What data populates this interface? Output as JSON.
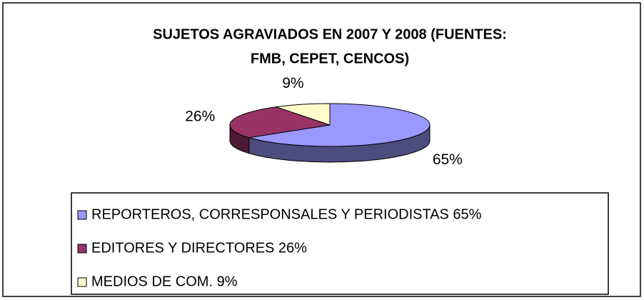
{
  "chart_data": {
    "type": "pie3d",
    "title": [
      "SUJETOS AGRAVIADOS EN 2007 Y 2008 (FUENTES:",
      "FMB, CEPET, CENCOS)"
    ],
    "categories": [
      "REPORTEROS, CORRESPONSALES Y PERIODISTAS 65%",
      "EDITORES Y DIRECTORES 26%",
      "MEDIOS DE COM. 9%"
    ],
    "values": [
      65,
      26,
      9
    ],
    "value_labels": [
      "65%",
      "26%",
      "9%"
    ],
    "colors": [
      "#9999ff",
      "#993366",
      "#ffffcc"
    ],
    "legend": "bottom"
  }
}
